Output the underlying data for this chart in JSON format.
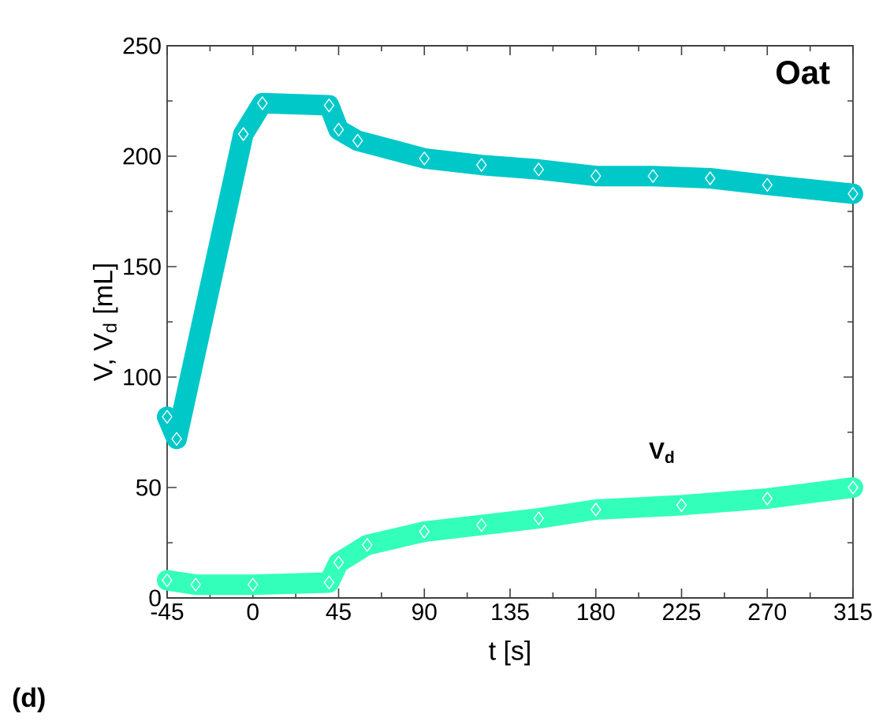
{
  "chart_data": {
    "type": "line",
    "xlabel": "t [s]",
    "ylabel": "V, V$_{d}$ [mL]",
    "xlim": [
      -45,
      315
    ],
    "xticks": [
      -45,
      0,
      45,
      90,
      135,
      180,
      225,
      270,
      315
    ],
    "ylim": [
      0,
      250
    ],
    "yticks": [
      0,
      50,
      100,
      150,
      200,
      250
    ],
    "marker": "diamond",
    "line_style": "solid",
    "grid": false,
    "series": [
      {
        "color": "#00c8c8",
        "x": [
          -45,
          -40,
          -5,
          5,
          40,
          45,
          55,
          90,
          120,
          150,
          180,
          210,
          240,
          270,
          315
        ],
        "values": [
          82,
          72,
          210,
          224,
          223,
          212,
          207,
          199,
          196,
          194,
          191,
          191,
          190,
          187,
          183
        ]
      },
      {
        "color": "#33ffbb",
        "x": [
          -45,
          -30,
          0,
          40,
          45,
          60,
          90,
          120,
          150,
          180,
          225,
          270,
          315
        ],
        "values": [
          8,
          6,
          6,
          7,
          16,
          24,
          30,
          33,
          36,
          40,
          42,
          45,
          50
        ]
      }
    ],
    "annotations": [
      "Oat",
      "V$_{d}$",
      "(d)"
    ]
  }
}
